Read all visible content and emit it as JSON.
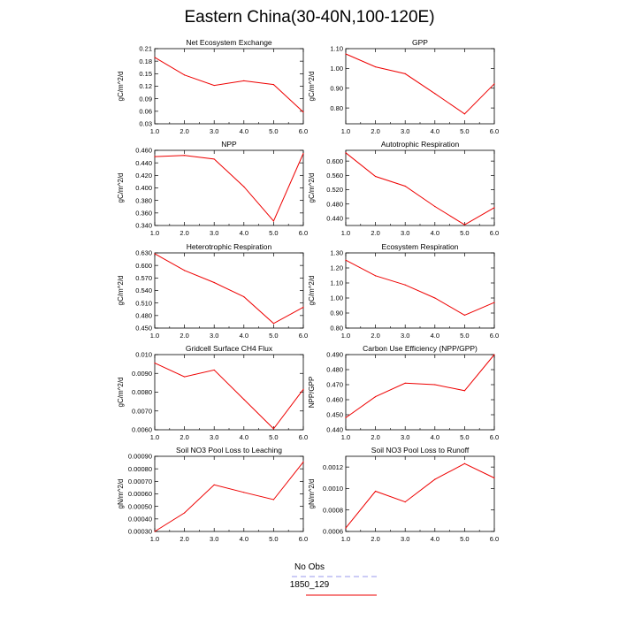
{
  "figure": {
    "title": "Eastern China(30-40N,100-120E)"
  },
  "legend": {
    "entries": [
      {
        "label": "No Obs",
        "color": "#9999ee",
        "style": "dashed"
      },
      {
        "label": "1850_129",
        "color": "#ee0000",
        "style": "solid"
      }
    ]
  },
  "chart_data": [
    {
      "type": "line",
      "title": "Net Ecosystem Exchange",
      "ylabel": "gC/m^2/d",
      "x": [
        1,
        2,
        3,
        4,
        5,
        6
      ],
      "xlim": [
        1,
        6
      ],
      "xtick_labels": [
        "1.0",
        "2.0",
        "3.0",
        "4.0",
        "5.0",
        "6.0"
      ],
      "ylim": [
        0.03,
        0.21
      ],
      "ytick_values": [
        0.03,
        0.06,
        0.09,
        0.12,
        0.15,
        0.18,
        0.21
      ],
      "ytick_labels": [
        "0.03",
        "0.06",
        "0.09",
        "0.12",
        "0.15",
        "0.18",
        "0.21"
      ],
      "series": [
        {
          "name": "1850_129",
          "values": [
            0.189,
            0.147,
            0.122,
            0.133,
            0.124,
            0.058
          ]
        }
      ]
    },
    {
      "type": "line",
      "title": "GPP",
      "ylabel": "gC/m^2/d",
      "x": [
        1,
        2,
        3,
        4,
        5,
        6
      ],
      "xlim": [
        1,
        6
      ],
      "xtick_labels": [
        "1.0",
        "2.0",
        "3.0",
        "4.0",
        "5.0",
        "6.0"
      ],
      "ylim": [
        0.72,
        1.1
      ],
      "ytick_values": [
        0.8,
        0.9,
        1.0,
        1.1
      ],
      "ytick_labels": [
        "0.80",
        "0.90",
        "1.00",
        "1.10"
      ],
      "series": [
        {
          "name": "1850_129",
          "values": [
            1.073,
            1.008,
            0.973,
            0.873,
            0.77,
            0.922
          ]
        }
      ]
    },
    {
      "type": "line",
      "title": "NPP",
      "ylabel": "gC/m^2/d",
      "x": [
        1,
        2,
        3,
        4,
        5,
        6
      ],
      "xlim": [
        1,
        6
      ],
      "xtick_labels": [
        "1.0",
        "2.0",
        "3.0",
        "4.0",
        "5.0",
        "6.0"
      ],
      "ylim": [
        0.34,
        0.46
      ],
      "ytick_values": [
        0.34,
        0.36,
        0.38,
        0.4,
        0.42,
        0.44,
        0.46
      ],
      "ytick_labels": [
        "0.340",
        "0.360",
        "0.380",
        "0.400",
        "0.420",
        "0.440",
        "0.460"
      ],
      "series": [
        {
          "name": "1850_129",
          "values": [
            0.45,
            0.452,
            0.446,
            0.402,
            0.347,
            0.455
          ]
        }
      ]
    },
    {
      "type": "line",
      "title": "Autotrophic Respiration",
      "ylabel": "gC/m^2/d",
      "x": [
        1,
        2,
        3,
        4,
        5,
        6
      ],
      "xlim": [
        1,
        6
      ],
      "xtick_labels": [
        "1.0",
        "2.0",
        "3.0",
        "4.0",
        "5.0",
        "6.0"
      ],
      "ylim": [
        0.42,
        0.63
      ],
      "ytick_values": [
        0.44,
        0.48,
        0.52,
        0.56,
        0.6
      ],
      "ytick_labels": [
        "0.440",
        "0.480",
        "0.520",
        "0.560",
        "0.600"
      ],
      "series": [
        {
          "name": "1850_129",
          "values": [
            0.623,
            0.557,
            0.53,
            0.473,
            0.422,
            0.47
          ]
        }
      ]
    },
    {
      "type": "line",
      "title": "Heterotrophic Respiration",
      "ylabel": "gC/m^2/d",
      "x": [
        1,
        2,
        3,
        4,
        5,
        6
      ],
      "xlim": [
        1,
        6
      ],
      "xtick_labels": [
        "1.0",
        "2.0",
        "3.0",
        "4.0",
        "5.0",
        "6.0"
      ],
      "ylim": [
        0.45,
        0.63
      ],
      "ytick_values": [
        0.45,
        0.48,
        0.51,
        0.54,
        0.57,
        0.6,
        0.63
      ],
      "ytick_labels": [
        "0.450",
        "0.480",
        "0.510",
        "0.540",
        "0.570",
        "0.600",
        "0.630"
      ],
      "series": [
        {
          "name": "1850_129",
          "values": [
            0.628,
            0.588,
            0.559,
            0.525,
            0.461,
            0.5
          ]
        }
      ]
    },
    {
      "type": "line",
      "title": "Ecosystem Respiration",
      "ylabel": "gC/m^2/d",
      "x": [
        1,
        2,
        3,
        4,
        5,
        6
      ],
      "xlim": [
        1,
        6
      ],
      "xtick_labels": [
        "1.0",
        "2.0",
        "3.0",
        "4.0",
        "5.0",
        "6.0"
      ],
      "ylim": [
        0.8,
        1.3
      ],
      "ytick_values": [
        0.8,
        0.9,
        1.0,
        1.1,
        1.2,
        1.3
      ],
      "ytick_labels": [
        "0.80",
        "0.90",
        "1.00",
        "1.10",
        "1.20",
        "1.30"
      ],
      "series": [
        {
          "name": "1850_129",
          "values": [
            1.252,
            1.148,
            1.087,
            1.0,
            0.886,
            0.97
          ]
        }
      ]
    },
    {
      "type": "line",
      "title": "Gridcell Surface CH4 Flux",
      "ylabel": "gC/m^2/d",
      "x": [
        1,
        2,
        3,
        4,
        5,
        6
      ],
      "xlim": [
        1,
        6
      ],
      "xtick_labels": [
        "1.0",
        "2.0",
        "3.0",
        "4.0",
        "5.0",
        "6.0"
      ],
      "ylim": [
        0.006,
        0.01
      ],
      "ytick_values": [
        0.006,
        0.007,
        0.008,
        0.009,
        0.01
      ],
      "ytick_labels": [
        "0.0060",
        "0.0070",
        "0.0080",
        "0.0090",
        "0.010"
      ],
      "series": [
        {
          "name": "1850_129",
          "values": [
            0.00955,
            0.00882,
            0.00918,
            0.00762,
            0.00605,
            0.00815
          ]
        }
      ]
    },
    {
      "type": "line",
      "title": "Carbon Use Efficiency (NPP/GPP)",
      "ylabel": "NPP/GPP",
      "x": [
        1,
        2,
        3,
        4,
        5,
        6
      ],
      "xlim": [
        1,
        6
      ],
      "xtick_labels": [
        "1.0",
        "2.0",
        "3.0",
        "4.0",
        "5.0",
        "6.0"
      ],
      "ylim": [
        0.44,
        0.49
      ],
      "ytick_values": [
        0.44,
        0.45,
        0.46,
        0.47,
        0.48,
        0.49
      ],
      "ytick_labels": [
        "0.440",
        "0.450",
        "0.460",
        "0.470",
        "0.480",
        "0.490"
      ],
      "series": [
        {
          "name": "1850_129",
          "values": [
            0.448,
            0.462,
            0.471,
            0.47,
            0.466,
            0.49
          ]
        }
      ]
    },
    {
      "type": "line",
      "title": "Soil NO3 Pool Loss to Leaching",
      "ylabel": "gN/m^2/d",
      "x": [
        1,
        2,
        3,
        4,
        5,
        6
      ],
      "xlim": [
        1,
        6
      ],
      "xtick_labels": [
        "1.0",
        "2.0",
        "3.0",
        "4.0",
        "5.0",
        "6.0"
      ],
      "ylim": [
        0.0003,
        0.0009
      ],
      "ytick_values": [
        0.0003,
        0.0004,
        0.0005,
        0.0006,
        0.0007,
        0.0008,
        0.0009
      ],
      "ytick_labels": [
        "0.00030",
        "0.00040",
        "0.00050",
        "0.00060",
        "0.00070",
        "0.00080",
        "0.00090"
      ],
      "series": [
        {
          "name": "1850_129",
          "values": [
            0.0003,
            0.000448,
            0.000672,
            0.000612,
            0.000554,
            0.000855
          ]
        }
      ]
    },
    {
      "type": "line",
      "title": "Soil NO3 Pool Loss to Runoff",
      "ylabel": "gN/m^2/d",
      "x": [
        1,
        2,
        3,
        4,
        5,
        6
      ],
      "xlim": [
        1,
        6
      ],
      "xtick_labels": [
        "1.0",
        "2.0",
        "3.0",
        "4.0",
        "5.0",
        "6.0"
      ],
      "ylim": [
        0.0006,
        0.0013
      ],
      "ytick_values": [
        0.0006,
        0.0008,
        0.001,
        0.0012
      ],
      "ytick_labels": [
        "0.0006",
        "0.0008",
        "0.0010",
        "0.0012"
      ],
      "series": [
        {
          "name": "1850_129",
          "values": [
            0.000632,
            0.000975,
            0.000875,
            0.001085,
            0.001232,
            0.001098
          ]
        }
      ]
    }
  ]
}
